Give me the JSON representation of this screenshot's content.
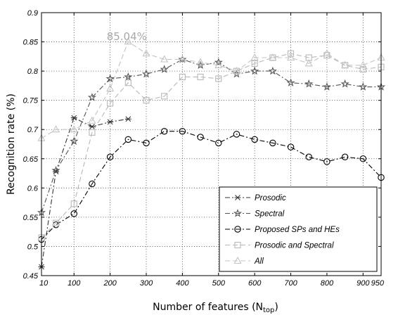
{
  "chart_data": {
    "type": "line",
    "title": "",
    "xlabel_main": "Number of features (N",
    "xlabel_sub": "top",
    "xlabel_end": ")",
    "ylabel": "Recognition rate (%)",
    "xlim": [
      10,
      950
    ],
    "ylim": [
      0.45,
      0.9
    ],
    "x_ticks": [
      10,
      100,
      200,
      300,
      400,
      500,
      600,
      700,
      800,
      900,
      950
    ],
    "y_ticks": [
      0.45,
      0.5,
      0.55,
      0.6,
      0.65,
      0.7,
      0.75,
      0.8,
      0.85,
      0.9
    ],
    "grid": true,
    "legend_position": "bottom-right",
    "annotation": {
      "text": "85.04%",
      "x": 250,
      "y": 0.8504
    },
    "series": [
      {
        "name": "Prosodic",
        "marker": "x-cross",
        "color": "#333333",
        "dash": "dashdot",
        "x": [
          10,
          50,
          100,
          150,
          200,
          250
        ],
        "y": [
          0.465,
          0.628,
          0.72,
          0.705,
          0.713,
          0.718
        ]
      },
      {
        "name": "Spectral",
        "marker": "star",
        "color": "#555555",
        "dash": "dashdot",
        "x": [
          10,
          50,
          100,
          150,
          200,
          250,
          300,
          350,
          400,
          450,
          500,
          550,
          600,
          650,
          700,
          750,
          800,
          850,
          900,
          950
        ],
        "y": [
          0.558,
          0.63,
          0.68,
          0.755,
          0.787,
          0.79,
          0.795,
          0.803,
          0.82,
          0.81,
          0.815,
          0.795,
          0.8,
          0.8,
          0.78,
          0.778,
          0.773,
          0.778,
          0.773,
          0.773
        ]
      },
      {
        "name": "Proposed SPs and HEs",
        "marker": "circle",
        "color": "#000000",
        "dash": "dashdot",
        "x": [
          10,
          50,
          100,
          150,
          200,
          250,
          300,
          350,
          400,
          450,
          500,
          550,
          600,
          650,
          700,
          750,
          800,
          850,
          900,
          950
        ],
        "y": [
          0.512,
          0.537,
          0.556,
          0.607,
          0.653,
          0.683,
          0.677,
          0.697,
          0.697,
          0.687,
          0.677,
          0.692,
          0.683,
          0.677,
          0.67,
          0.653,
          0.645,
          0.653,
          0.65,
          0.618
        ]
      },
      {
        "name": "Prosodic and Spectral",
        "marker": "square",
        "color": "#b8b8b8",
        "dash": "dash",
        "x": [
          10,
          50,
          100,
          150,
          200,
          250,
          300,
          350,
          400,
          450,
          500,
          550,
          600,
          650,
          700,
          750,
          800,
          850,
          900,
          950
        ],
        "y": [
          0.515,
          0.54,
          0.573,
          0.695,
          0.745,
          0.78,
          0.75,
          0.757,
          0.79,
          0.79,
          0.787,
          0.8,
          0.813,
          0.823,
          0.83,
          0.823,
          0.827,
          0.81,
          0.803,
          0.807
        ]
      },
      {
        "name": "All",
        "marker": "triangle",
        "color": "#c4c4c4",
        "dash": "dash",
        "x": [
          10,
          50,
          100,
          150,
          200,
          250,
          300,
          350,
          400,
          450,
          500,
          550,
          600,
          650,
          700,
          750,
          800,
          850,
          900,
          950
        ],
        "y": [
          0.685,
          0.7,
          0.7,
          0.715,
          0.77,
          0.8504,
          0.83,
          0.82,
          0.82,
          0.815,
          0.81,
          0.8,
          0.823,
          0.823,
          0.823,
          0.813,
          0.83,
          0.81,
          0.81,
          0.823
        ]
      }
    ]
  }
}
